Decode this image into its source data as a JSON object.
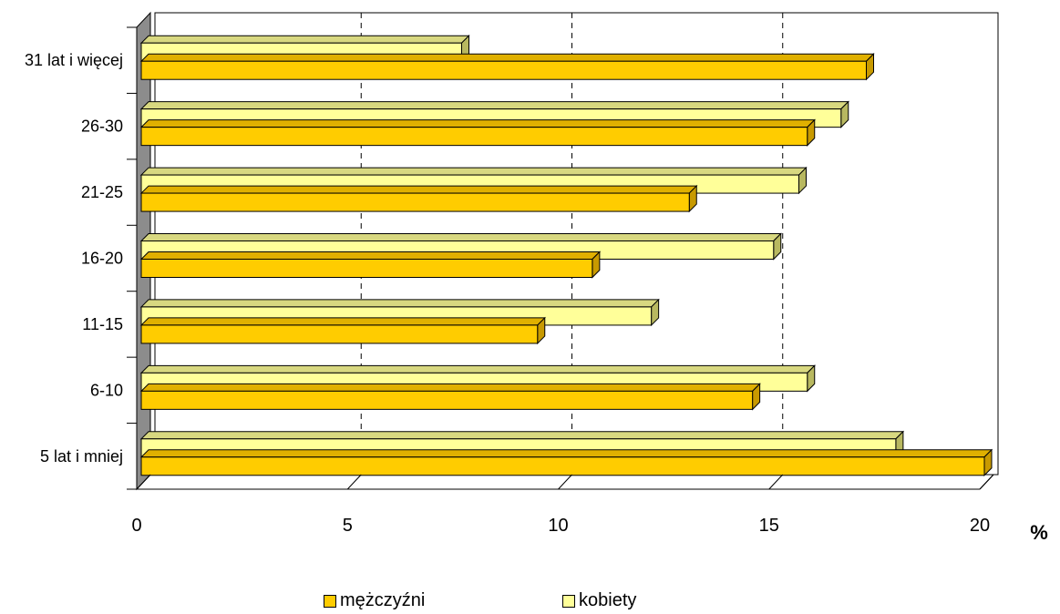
{
  "chart_data": {
    "type": "bar",
    "orientation": "horizontal",
    "categories": [
      "5 lat i mniej",
      "6-10",
      "11-15",
      "16-20",
      "21-25",
      "26-30",
      "31 lat i więcej"
    ],
    "series": [
      {
        "name": "mężczyźni",
        "values": [
          20.0,
          14.5,
          9.4,
          10.7,
          13.0,
          15.8,
          17.2
        ],
        "color": "#FFCC00"
      },
      {
        "name": "kobiety",
        "values": [
          17.9,
          15.8,
          12.1,
          15.0,
          15.6,
          16.6,
          7.6
        ],
        "color": "#FFFF99"
      }
    ],
    "xlim": [
      0,
      20
    ],
    "xticks": [
      "0",
      "5",
      "10",
      "15",
      "20"
    ],
    "unit_label": "%",
    "grid": "vertical dashed",
    "legend_position": "bottom"
  },
  "colors": {
    "series1_side": "#C89A00",
    "series2_side": "#B8B860",
    "wall": "#8C8C8C"
  }
}
